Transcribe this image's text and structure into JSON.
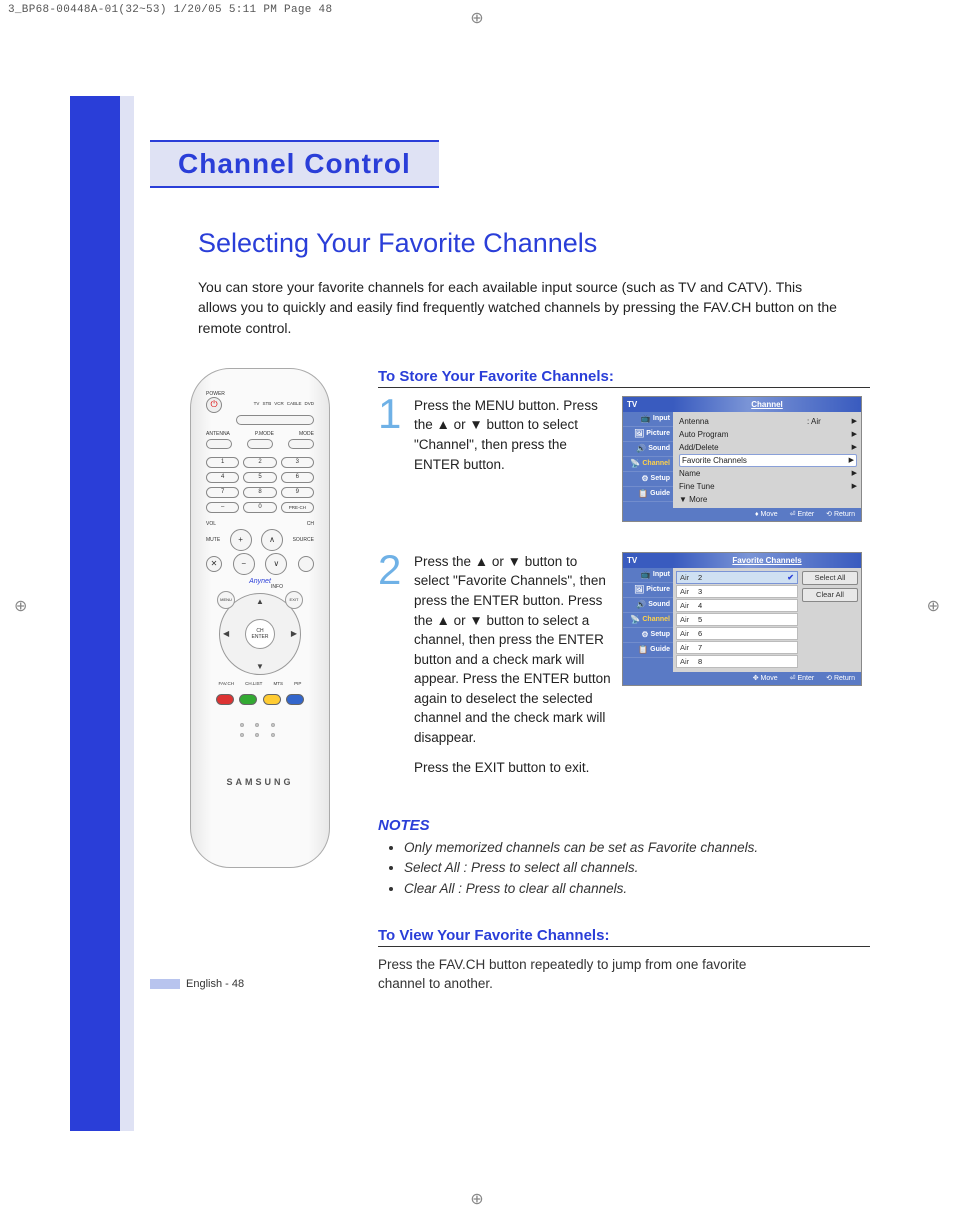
{
  "meta": {
    "header_line": "3_BP68-00448A-01(32~53)  1/20/05  5:11 PM  Page 48"
  },
  "colors": {
    "brand_blue": "#2a3ed8",
    "pale_blue": "#dfe2f4",
    "osd_blue": "#5a7ac5",
    "step_num_blue": "#6fb1e6",
    "highlight_yellow": "#ffd24a"
  },
  "chapter": {
    "title": "Channel Control"
  },
  "section": {
    "title": "Selecting Your Favorite Channels"
  },
  "intro": "You can store your favorite channels for each available input source (such as TV and CATV). This allows you to quickly and easily find frequently watched channels by pressing the FAV.CH button on the remote control.",
  "remote": {
    "power_label": "POWER",
    "mode_labels": [
      "TV",
      "STB",
      "VCR",
      "CABLE",
      "DVD"
    ],
    "row_antenna": "ANTENNA",
    "row_pmode": "P.MODE",
    "row_mode": "MODE",
    "numbers": [
      "1",
      "2",
      "3",
      "4",
      "5",
      "6",
      "7",
      "8",
      "9",
      "–",
      "0",
      "PRE-CH"
    ],
    "vol_label": "VOL",
    "ch_label": "CH",
    "mute_label": "MUTE",
    "source_label": "SOURCE",
    "anynet_label": "Anynet",
    "info_label": "INFO",
    "enter_top": "CH",
    "enter_label": "ENTER",
    "color_row_labels": [
      "FAV.CH",
      "CH.LIST",
      "MTS",
      "PIP"
    ],
    "brand": "SAMSUNG"
  },
  "store": {
    "heading": "To Store Your Favorite Channels:",
    "step1": "Press the MENU button. Press the ▲ or ▼ button to select \"Channel\", then press the ENTER button.",
    "step2": "Press the ▲ or ▼ button to select \"Favorite Channels\", then press the ENTER button. Press the ▲ or ▼ button to select a channel, then press the ENTER button and a check mark will appear. Press the ENTER button again to deselect the selected channel and the check mark will disappear.",
    "exit_line": "Press the EXIT button to exit."
  },
  "osd1": {
    "tv_label": "TV",
    "title": "Channel",
    "side": [
      "Input",
      "Picture",
      "Sound",
      "Channel",
      "Setup",
      "Guide"
    ],
    "active_side": "Channel",
    "rows": [
      {
        "label": "Antenna",
        "val": ": Air",
        "arrow": true,
        "hl": false
      },
      {
        "label": "Auto Program",
        "val": "",
        "arrow": true,
        "hl": false
      },
      {
        "label": "Add/Delete",
        "val": "",
        "arrow": true,
        "hl": false
      },
      {
        "label": "Favorite Channels",
        "val": "",
        "arrow": true,
        "hl": true
      },
      {
        "label": "Name",
        "val": "",
        "arrow": true,
        "hl": false
      },
      {
        "label": "Fine Tune",
        "val": "",
        "arrow": true,
        "hl": false
      },
      {
        "label": "▼ More",
        "val": "",
        "arrow": false,
        "hl": false
      }
    ],
    "foot": {
      "move": "Move",
      "enter": "Enter",
      "return": "Return"
    }
  },
  "osd2": {
    "tv_label": "TV",
    "title": "Favorite Channels",
    "side": [
      "Input",
      "Picture",
      "Sound",
      "Channel",
      "Setup",
      "Guide"
    ],
    "active_side": "Channel",
    "channels": [
      {
        "src": "Air",
        "num": "2",
        "checked": true,
        "sel": true
      },
      {
        "src": "Air",
        "num": "3",
        "checked": false,
        "sel": false
      },
      {
        "src": "Air",
        "num": "4",
        "checked": false,
        "sel": false
      },
      {
        "src": "Air",
        "num": "5",
        "checked": false,
        "sel": false
      },
      {
        "src": "Air",
        "num": "6",
        "checked": false,
        "sel": false
      },
      {
        "src": "Air",
        "num": "7",
        "checked": false,
        "sel": false
      },
      {
        "src": "Air",
        "num": "8",
        "checked": false,
        "sel": false
      }
    ],
    "actions": {
      "select_all": "Select All",
      "clear_all": "Clear All"
    },
    "foot": {
      "move": "Move",
      "enter": "Enter",
      "return": "Return"
    }
  },
  "notes": {
    "heading": "NOTES",
    "items": [
      "Only memorized channels can be set as Favorite channels.",
      "Select All : Press to select all channels.",
      "Clear All : Press to clear all channels."
    ]
  },
  "view": {
    "heading": "To View Your Favorite Channels:",
    "text": "Press the FAV.CH button repeatedly to jump from one favorite channel to another."
  },
  "footer": {
    "text": "English - 48"
  }
}
